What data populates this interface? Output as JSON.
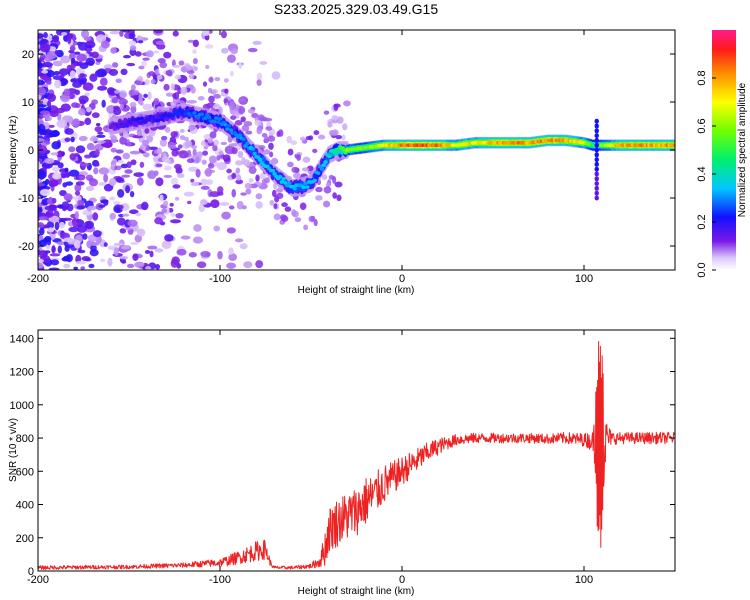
{
  "figure": {
    "title": "S233.2025.329.03.49.G15"
  },
  "chart_data": [
    {
      "type": "heatmap",
      "name": "spectrogram",
      "xlabel": "Height of straight line (km)",
      "ylabel": "Frequency (Hz)",
      "xlim": [
        -200,
        150
      ],
      "ylim": [
        -25,
        25
      ],
      "xticks": [
        -200,
        -100,
        0,
        100
      ],
      "xtick_labels": [
        "-200",
        "-100",
        "0",
        "100"
      ],
      "yticks": [
        -20,
        -10,
        0,
        10,
        20
      ],
      "ytick_labels": [
        "-20",
        "-10",
        "0",
        "10",
        "20"
      ],
      "colorbar": {
        "label": "Normalized spectral amplitude",
        "range": [
          0,
          1
        ],
        "ticks": [
          0.0,
          0.2,
          0.4,
          0.6,
          0.8
        ],
        "tick_labels": [
          "0.0",
          "0.2",
          "0.4",
          "0.6",
          "0.8"
        ]
      },
      "ridge": {
        "x": [
          -160,
          -145,
          -130,
          -120,
          -110,
          -100,
          -90,
          -80,
          -70,
          -60,
          -50,
          -45,
          -40,
          -35,
          -30,
          -20,
          -10,
          0,
          10,
          20,
          30,
          40,
          50,
          60,
          70,
          80,
          90,
          100,
          105,
          110,
          120,
          130,
          140,
          150
        ],
        "freq": [
          5,
          6,
          7,
          8,
          7,
          6,
          3,
          -1,
          -5,
          -8,
          -7,
          -4,
          -1,
          0,
          0,
          0.5,
          1,
          1,
          1,
          1,
          1,
          1.5,
          1.5,
          1.5,
          1.5,
          2,
          2,
          1.5,
          1,
          1,
          1,
          1,
          1,
          1
        ],
        "amplitude": [
          0.15,
          0.2,
          0.2,
          0.25,
          0.3,
          0.3,
          0.3,
          0.35,
          0.35,
          0.35,
          0.35,
          0.3,
          0.4,
          0.5,
          0.6,
          0.6,
          0.7,
          0.85,
          0.9,
          0.85,
          0.7,
          0.75,
          0.8,
          0.85,
          0.8,
          0.85,
          0.8,
          0.7,
          0.5,
          0.6,
          0.8,
          0.85,
          0.8,
          0.85
        ]
      }
    },
    {
      "type": "line",
      "name": "snr",
      "xlabel": "Height of straight line (km)",
      "ylabel": "SNR (10 * v/v)",
      "xlim": [
        -200,
        150
      ],
      "ylim": [
        0,
        1450
      ],
      "xticks": [
        -200,
        -100,
        0,
        100
      ],
      "xtick_labels": [
        "-200",
        "-100",
        "0",
        "100"
      ],
      "yticks": [
        0,
        200,
        400,
        600,
        800,
        1000,
        1200,
        1400
      ],
      "ytick_labels": [
        "0",
        "200",
        "400",
        "600",
        "800",
        "1000",
        "1200",
        "1400"
      ],
      "color": "#ee2222",
      "envelope": {
        "x": [
          -200,
          -150,
          -120,
          -100,
          -90,
          -80,
          -75,
          -72,
          -70,
          -60,
          -50,
          -45,
          -42,
          -40,
          -35,
          -30,
          -25,
          -20,
          -15,
          -10,
          -5,
          0,
          5,
          10,
          15,
          20,
          25,
          30,
          40,
          50,
          60,
          70,
          80,
          90,
          100,
          105,
          108,
          110,
          112,
          115,
          120,
          130,
          140,
          150
        ],
        "mean": [
          20,
          25,
          35,
          50,
          80,
          120,
          130,
          40,
          20,
          20,
          30,
          60,
          150,
          250,
          300,
          330,
          360,
          420,
          460,
          520,
          560,
          600,
          640,
          680,
          720,
          750,
          770,
          790,
          800,
          800,
          800,
          800,
          795,
          800,
          790,
          780,
          780,
          780,
          800,
          800,
          800,
          800,
          800,
          800
        ],
        "noise": [
          12,
          12,
          15,
          25,
          40,
          60,
          60,
          15,
          10,
          10,
          15,
          40,
          120,
          140,
          150,
          150,
          150,
          150,
          130,
          120,
          100,
          90,
          80,
          70,
          60,
          50,
          40,
          35,
          30,
          30,
          30,
          30,
          30,
          35,
          40,
          60,
          650,
          600,
          120,
          40,
          35,
          35,
          35,
          35
        ]
      }
    }
  ]
}
